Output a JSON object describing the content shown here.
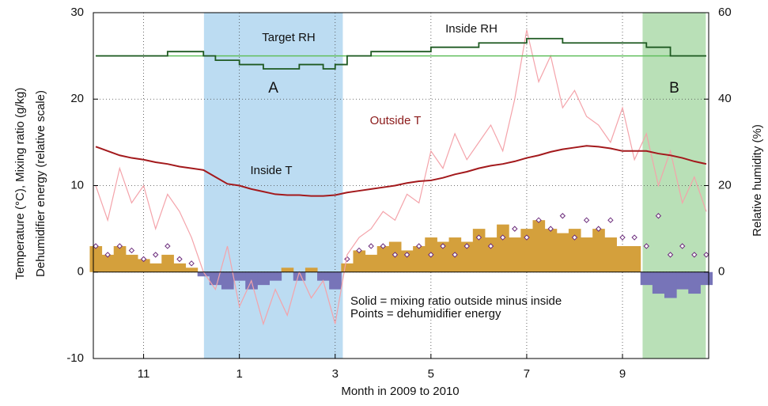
{
  "chart_data": {
    "type": "combo",
    "x_label": "Month in 2009 to 2010",
    "y_label": [
      "Temperature (°C), Mixing ratio (g/kg)",
      "Dehumidifier energy (relative scale)"
    ],
    "y2_label": "Relative humidity (%)",
    "xlim": [
      9.95,
      22.8
    ],
    "xticks": [
      {
        "value": 11,
        "label": "11"
      },
      {
        "value": 13,
        "label": "1"
      },
      {
        "value": 15,
        "label": "3"
      },
      {
        "value": 17,
        "label": "5"
      },
      {
        "value": 19,
        "label": "7"
      },
      {
        "value": 21,
        "label": "9"
      }
    ],
    "ylim": [
      -10,
      30
    ],
    "yticks": [
      -10,
      0,
      10,
      20,
      30
    ],
    "y2lim": [
      -20,
      60
    ],
    "y2ticks": [
      0,
      20,
      40,
      60
    ],
    "grid": true,
    "regions": [
      {
        "label": "A",
        "start": 12.26,
        "end": 15.16,
        "color": "#bcdcf2"
      },
      {
        "label": "B",
        "start": 21.42,
        "end": 22.74,
        "color": "#b9e0b7"
      }
    ],
    "notes": [
      "Solid = mixing ratio outside minus inside",
      "Points = dehumidifier energy"
    ],
    "x": [
      10.0,
      10.25,
      10.5,
      10.75,
      11.0,
      11.25,
      11.5,
      11.75,
      12.0,
      12.25,
      12.5,
      12.75,
      13.0,
      13.25,
      13.5,
      13.75,
      14.0,
      14.25,
      14.5,
      14.75,
      15.0,
      15.25,
      15.5,
      15.75,
      16.0,
      16.25,
      16.5,
      16.75,
      17.0,
      17.25,
      17.5,
      17.75,
      18.0,
      18.25,
      18.5,
      18.75,
      19.0,
      19.25,
      19.5,
      19.75,
      20.0,
      20.25,
      20.5,
      20.75,
      21.0,
      21.25,
      21.5,
      21.75,
      22.0,
      22.25,
      22.5,
      22.75
    ],
    "series": [
      {
        "kind": "bars",
        "colors": [
          "#d4a03c",
          "#7774b8"
        ],
        "values": [
          3,
          2,
          3,
          2,
          1.5,
          1,
          2,
          1,
          0.5,
          -0.5,
          -1.5,
          -2,
          -1,
          -2,
          -1.5,
          -1,
          0.5,
          -1,
          0.5,
          -1,
          -2,
          1,
          2.5,
          2,
          3,
          3.5,
          2.5,
          3,
          4,
          3.5,
          4,
          3.5,
          5,
          4,
          5.5,
          4,
          5,
          6,
          5,
          4.5,
          5,
          4,
          5,
          4,
          3,
          3,
          -1.5,
          -2.5,
          -3,
          -2,
          -2.5,
          -1.5
        ]
      },
      {
        "kind": "points",
        "color": "#6a2a7a",
        "values": [
          3,
          2,
          3,
          2.5,
          1.5,
          2,
          3,
          1.5,
          1,
          null,
          null,
          null,
          null,
          null,
          null,
          null,
          null,
          null,
          null,
          null,
          null,
          1.5,
          2.5,
          3,
          3,
          2,
          2,
          3,
          2,
          3,
          2,
          3,
          4,
          3,
          4,
          5,
          4,
          6,
          5,
          6.5,
          4,
          6,
          5,
          6,
          4,
          4,
          3,
          6.5,
          2,
          3,
          2,
          2
        ]
      },
      {
        "kind": "line",
        "name": "Outside T",
        "color": "#f4a3aa",
        "width": 1.2,
        "values": [
          10,
          6,
          12,
          8,
          10,
          5,
          9,
          7,
          4,
          0,
          -2,
          3,
          -4,
          -1,
          -6,
          -2,
          -5,
          0,
          -3,
          -1,
          -6,
          2,
          4,
          5,
          7,
          6,
          9,
          8,
          14,
          12,
          16,
          13,
          15,
          17,
          14,
          20,
          28,
          22,
          25,
          19,
          21,
          18,
          17,
          15,
          19,
          13,
          16,
          10,
          14,
          8,
          11,
          7
        ]
      },
      {
        "kind": "line",
        "name": "Inside T",
        "color": "#a3191c",
        "width": 2,
        "values": [
          14.5,
          14.0,
          13.5,
          13.2,
          13.0,
          12.7,
          12.5,
          12.2,
          12.0,
          11.8,
          11.0,
          10.2,
          10.0,
          9.6,
          9.3,
          9.0,
          8.9,
          8.9,
          8.8,
          8.8,
          8.9,
          9.2,
          9.4,
          9.6,
          9.8,
          10.0,
          10.3,
          10.5,
          10.6,
          10.9,
          11.3,
          11.6,
          12.0,
          12.3,
          12.5,
          12.8,
          13.2,
          13.5,
          13.9,
          14.2,
          14.4,
          14.6,
          14.5,
          14.3,
          14.0,
          14.0,
          14.0,
          13.7,
          13.5,
          13.2,
          12.8,
          12.5
        ]
      },
      {
        "kind": "line",
        "name": "Target RH",
        "axis": "y2",
        "color": "#62bf5e",
        "width": 1.5,
        "values": [
          50,
          50,
          50,
          50,
          50,
          50,
          50,
          50,
          50,
          50,
          50,
          50,
          50,
          50,
          50,
          50,
          50,
          50,
          50,
          50,
          50,
          50,
          50,
          50,
          50,
          50,
          50,
          50,
          50,
          50,
          50,
          50,
          50,
          50,
          50,
          50,
          50,
          50,
          50,
          50,
          50,
          50,
          50,
          50,
          50,
          50,
          50,
          50,
          50,
          50,
          50,
          50
        ]
      },
      {
        "kind": "step",
        "name": "Inside RH",
        "axis": "y2",
        "color": "#1f5a22",
        "width": 1.8,
        "values": [
          50,
          50,
          50,
          50,
          50,
          50,
          51,
          51,
          51,
          50,
          49,
          49,
          48,
          48,
          47,
          47,
          47,
          48,
          48,
          47,
          48,
          50,
          50,
          51,
          51,
          51,
          51,
          51,
          52,
          52,
          52,
          52,
          53,
          53,
          53,
          53,
          54,
          54,
          54,
          53,
          53,
          53,
          53,
          53,
          53,
          53,
          52,
          52,
          50,
          50,
          50,
          50
        ]
      }
    ]
  }
}
